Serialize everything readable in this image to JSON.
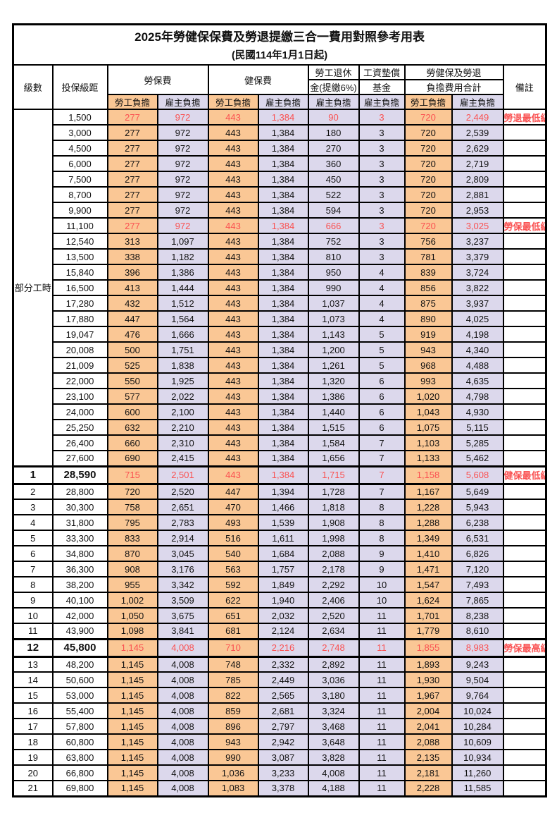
{
  "title": "2025年勞健保保費及勞退提繳三合一費用對照參考用表",
  "subtitle": "(民國114年1月1日起)",
  "colors": {
    "employee_share_bg": "#FAC795",
    "employer_share_bg": "#DCD8EC",
    "highlight_red": "#FA5151",
    "border_black": "#000000"
  },
  "header": {
    "level": "級數",
    "bracket": "投保級距",
    "labor_group": "勞保費",
    "health_group": "健保費",
    "pension_line1": "勞工退休",
    "pension_line2": "金(提繳6%)",
    "wage_fund_line1": "工資墊償",
    "wage_fund_line2": "基金",
    "total_line1": "勞健保及勞退",
    "total_line2": "負擔費用合計",
    "employee_share": "勞工負擔",
    "employer_share": "雇主負擔",
    "remark": "備註"
  },
  "part_time_label": "部分工時",
  "part_time_row_count": 23,
  "value_column_kinds": [
    "emp",
    "er",
    "emp",
    "er",
    "er",
    "er",
    "emp",
    "er"
  ],
  "rows": [
    {
      "level": "",
      "bracket": "1,500",
      "values": [
        "277",
        "972",
        "443",
        "1,384",
        "90",
        "3",
        "720",
        "2,449"
      ],
      "remark": "勞退最低級距",
      "red": true,
      "bold": false
    },
    {
      "level": "",
      "bracket": "3,000",
      "values": [
        "277",
        "972",
        "443",
        "1,384",
        "180",
        "3",
        "720",
        "2,539"
      ],
      "remark": "",
      "red": false,
      "bold": false
    },
    {
      "level": "",
      "bracket": "4,500",
      "values": [
        "277",
        "972",
        "443",
        "1,384",
        "270",
        "3",
        "720",
        "2,629"
      ],
      "remark": "",
      "red": false,
      "bold": false
    },
    {
      "level": "",
      "bracket": "6,000",
      "values": [
        "277",
        "972",
        "443",
        "1,384",
        "360",
        "3",
        "720",
        "2,719"
      ],
      "remark": "",
      "red": false,
      "bold": false
    },
    {
      "level": "",
      "bracket": "7,500",
      "values": [
        "277",
        "972",
        "443",
        "1,384",
        "450",
        "3",
        "720",
        "2,809"
      ],
      "remark": "",
      "red": false,
      "bold": false
    },
    {
      "level": "",
      "bracket": "8,700",
      "values": [
        "277",
        "972",
        "443",
        "1,384",
        "522",
        "3",
        "720",
        "2,881"
      ],
      "remark": "",
      "red": false,
      "bold": false
    },
    {
      "level": "",
      "bracket": "9,900",
      "values": [
        "277",
        "972",
        "443",
        "1,384",
        "594",
        "3",
        "720",
        "2,953"
      ],
      "remark": "",
      "red": false,
      "bold": false
    },
    {
      "level": "",
      "bracket": "11,100",
      "values": [
        "277",
        "972",
        "443",
        "1,384",
        "666",
        "3",
        "720",
        "3,025"
      ],
      "remark": "勞保最低級距",
      "red": true,
      "bold": false
    },
    {
      "level": "",
      "bracket": "12,540",
      "values": [
        "313",
        "1,097",
        "443",
        "1,384",
        "752",
        "3",
        "756",
        "3,237"
      ],
      "remark": "",
      "red": false,
      "bold": false
    },
    {
      "level": "",
      "bracket": "13,500",
      "values": [
        "338",
        "1,182",
        "443",
        "1,384",
        "810",
        "3",
        "781",
        "3,379"
      ],
      "remark": "",
      "red": false,
      "bold": false
    },
    {
      "level": "",
      "bracket": "15,840",
      "values": [
        "396",
        "1,386",
        "443",
        "1,384",
        "950",
        "4",
        "839",
        "3,724"
      ],
      "remark": "",
      "red": false,
      "bold": false
    },
    {
      "level": "",
      "bracket": "16,500",
      "values": [
        "413",
        "1,444",
        "443",
        "1,384",
        "990",
        "4",
        "856",
        "3,822"
      ],
      "remark": "",
      "red": false,
      "bold": false
    },
    {
      "level": "",
      "bracket": "17,280",
      "values": [
        "432",
        "1,512",
        "443",
        "1,384",
        "1,037",
        "4",
        "875",
        "3,937"
      ],
      "remark": "",
      "red": false,
      "bold": false
    },
    {
      "level": "",
      "bracket": "17,880",
      "values": [
        "447",
        "1,564",
        "443",
        "1,384",
        "1,073",
        "4",
        "890",
        "4,025"
      ],
      "remark": "",
      "red": false,
      "bold": false
    },
    {
      "level": "",
      "bracket": "19,047",
      "values": [
        "476",
        "1,666",
        "443",
        "1,384",
        "1,143",
        "5",
        "919",
        "4,198"
      ],
      "remark": "",
      "red": false,
      "bold": false
    },
    {
      "level": "",
      "bracket": "20,008",
      "values": [
        "500",
        "1,751",
        "443",
        "1,384",
        "1,200",
        "5",
        "943",
        "4,340"
      ],
      "remark": "",
      "red": false,
      "bold": false
    },
    {
      "level": "",
      "bracket": "21,009",
      "values": [
        "525",
        "1,838",
        "443",
        "1,384",
        "1,261",
        "5",
        "968",
        "4,488"
      ],
      "remark": "",
      "red": false,
      "bold": false
    },
    {
      "level": "",
      "bracket": "22,000",
      "values": [
        "550",
        "1,925",
        "443",
        "1,384",
        "1,320",
        "6",
        "993",
        "4,635"
      ],
      "remark": "",
      "red": false,
      "bold": false
    },
    {
      "level": "",
      "bracket": "23,100",
      "values": [
        "577",
        "2,022",
        "443",
        "1,384",
        "1,386",
        "6",
        "1,020",
        "4,798"
      ],
      "remark": "",
      "red": false,
      "bold": false
    },
    {
      "level": "",
      "bracket": "24,000",
      "values": [
        "600",
        "2,100",
        "443",
        "1,384",
        "1,440",
        "6",
        "1,043",
        "4,930"
      ],
      "remark": "",
      "red": false,
      "bold": false
    },
    {
      "level": "",
      "bracket": "25,250",
      "values": [
        "632",
        "2,210",
        "443",
        "1,384",
        "1,515",
        "6",
        "1,075",
        "5,115"
      ],
      "remark": "",
      "red": false,
      "bold": false
    },
    {
      "level": "",
      "bracket": "26,400",
      "values": [
        "660",
        "2,310",
        "443",
        "1,384",
        "1,584",
        "7",
        "1,103",
        "5,285"
      ],
      "remark": "",
      "red": false,
      "bold": false
    },
    {
      "level": "",
      "bracket": "27,600",
      "values": [
        "690",
        "2,415",
        "443",
        "1,384",
        "1,656",
        "7",
        "1,133",
        "5,462"
      ],
      "remark": "",
      "red": false,
      "bold": false
    },
    {
      "level": "1",
      "bracket": "28,590",
      "values": [
        "715",
        "2,501",
        "443",
        "1,384",
        "1,715",
        "7",
        "1,158",
        "5,608"
      ],
      "remark": "健保最低級距",
      "red": true,
      "bold": true
    },
    {
      "level": "2",
      "bracket": "28,800",
      "values": [
        "720",
        "2,520",
        "447",
        "1,394",
        "1,728",
        "7",
        "1,167",
        "5,649"
      ],
      "remark": "",
      "red": false,
      "bold": false
    },
    {
      "level": "3",
      "bracket": "30,300",
      "values": [
        "758",
        "2,651",
        "470",
        "1,466",
        "1,818",
        "8",
        "1,228",
        "5,943"
      ],
      "remark": "",
      "red": false,
      "bold": false
    },
    {
      "level": "4",
      "bracket": "31,800",
      "values": [
        "795",
        "2,783",
        "493",
        "1,539",
        "1,908",
        "8",
        "1,288",
        "6,238"
      ],
      "remark": "",
      "red": false,
      "bold": false
    },
    {
      "level": "5",
      "bracket": "33,300",
      "values": [
        "833",
        "2,914",
        "516",
        "1,611",
        "1,998",
        "8",
        "1,349",
        "6,531"
      ],
      "remark": "",
      "red": false,
      "bold": false
    },
    {
      "level": "6",
      "bracket": "34,800",
      "values": [
        "870",
        "3,045",
        "540",
        "1,684",
        "2,088",
        "9",
        "1,410",
        "6,826"
      ],
      "remark": "",
      "red": false,
      "bold": false
    },
    {
      "level": "7",
      "bracket": "36,300",
      "values": [
        "908",
        "3,176",
        "563",
        "1,757",
        "2,178",
        "9",
        "1,471",
        "7,120"
      ],
      "remark": "",
      "red": false,
      "bold": false
    },
    {
      "level": "8",
      "bracket": "38,200",
      "values": [
        "955",
        "3,342",
        "592",
        "1,849",
        "2,292",
        "10",
        "1,547",
        "7,493"
      ],
      "remark": "",
      "red": false,
      "bold": false
    },
    {
      "level": "9",
      "bracket": "40,100",
      "values": [
        "1,002",
        "3,509",
        "622",
        "1,940",
        "2,406",
        "10",
        "1,624",
        "7,865"
      ],
      "remark": "",
      "red": false,
      "bold": false
    },
    {
      "level": "10",
      "bracket": "42,000",
      "values": [
        "1,050",
        "3,675",
        "651",
        "2,032",
        "2,520",
        "11",
        "1,701",
        "8,238"
      ],
      "remark": "",
      "red": false,
      "bold": false
    },
    {
      "level": "11",
      "bracket": "43,900",
      "values": [
        "1,098",
        "3,841",
        "681",
        "2,124",
        "2,634",
        "11",
        "1,779",
        "8,610"
      ],
      "remark": "",
      "red": false,
      "bold": false
    },
    {
      "level": "12",
      "bracket": "45,800",
      "values": [
        "1,145",
        "4,008",
        "710",
        "2,216",
        "2,748",
        "11",
        "1,855",
        "8,983"
      ],
      "remark": "勞保最高級距",
      "red": true,
      "bold": true
    },
    {
      "level": "13",
      "bracket": "48,200",
      "values": [
        "1,145",
        "4,008",
        "748",
        "2,332",
        "2,892",
        "11",
        "1,893",
        "9,243"
      ],
      "remark": "",
      "red": false,
      "bold": false
    },
    {
      "level": "14",
      "bracket": "50,600",
      "values": [
        "1,145",
        "4,008",
        "785",
        "2,449",
        "3,036",
        "11",
        "1,930",
        "9,504"
      ],
      "remark": "",
      "red": false,
      "bold": false
    },
    {
      "level": "15",
      "bracket": "53,000",
      "values": [
        "1,145",
        "4,008",
        "822",
        "2,565",
        "3,180",
        "11",
        "1,967",
        "9,764"
      ],
      "remark": "",
      "red": false,
      "bold": false
    },
    {
      "level": "16",
      "bracket": "55,400",
      "values": [
        "1,145",
        "4,008",
        "859",
        "2,681",
        "3,324",
        "11",
        "2,004",
        "10,024"
      ],
      "remark": "",
      "red": false,
      "bold": false
    },
    {
      "level": "17",
      "bracket": "57,800",
      "values": [
        "1,145",
        "4,008",
        "896",
        "2,797",
        "3,468",
        "11",
        "2,041",
        "10,284"
      ],
      "remark": "",
      "red": false,
      "bold": false
    },
    {
      "level": "18",
      "bracket": "60,800",
      "values": [
        "1,145",
        "4,008",
        "943",
        "2,942",
        "3,648",
        "11",
        "2,088",
        "10,609"
      ],
      "remark": "",
      "red": false,
      "bold": false
    },
    {
      "level": "19",
      "bracket": "63,800",
      "values": [
        "1,145",
        "4,008",
        "990",
        "3,087",
        "3,828",
        "11",
        "2,135",
        "10,934"
      ],
      "remark": "",
      "red": false,
      "bold": false
    },
    {
      "level": "20",
      "bracket": "66,800",
      "values": [
        "1,145",
        "4,008",
        "1,036",
        "3,233",
        "4,008",
        "11",
        "2,181",
        "11,260"
      ],
      "remark": "",
      "red": false,
      "bold": false
    },
    {
      "level": "21",
      "bracket": "69,800",
      "values": [
        "1,145",
        "4,008",
        "1,083",
        "3,378",
        "4,188",
        "11",
        "2,228",
        "11,585"
      ],
      "remark": "",
      "red": false,
      "bold": false
    }
  ]
}
